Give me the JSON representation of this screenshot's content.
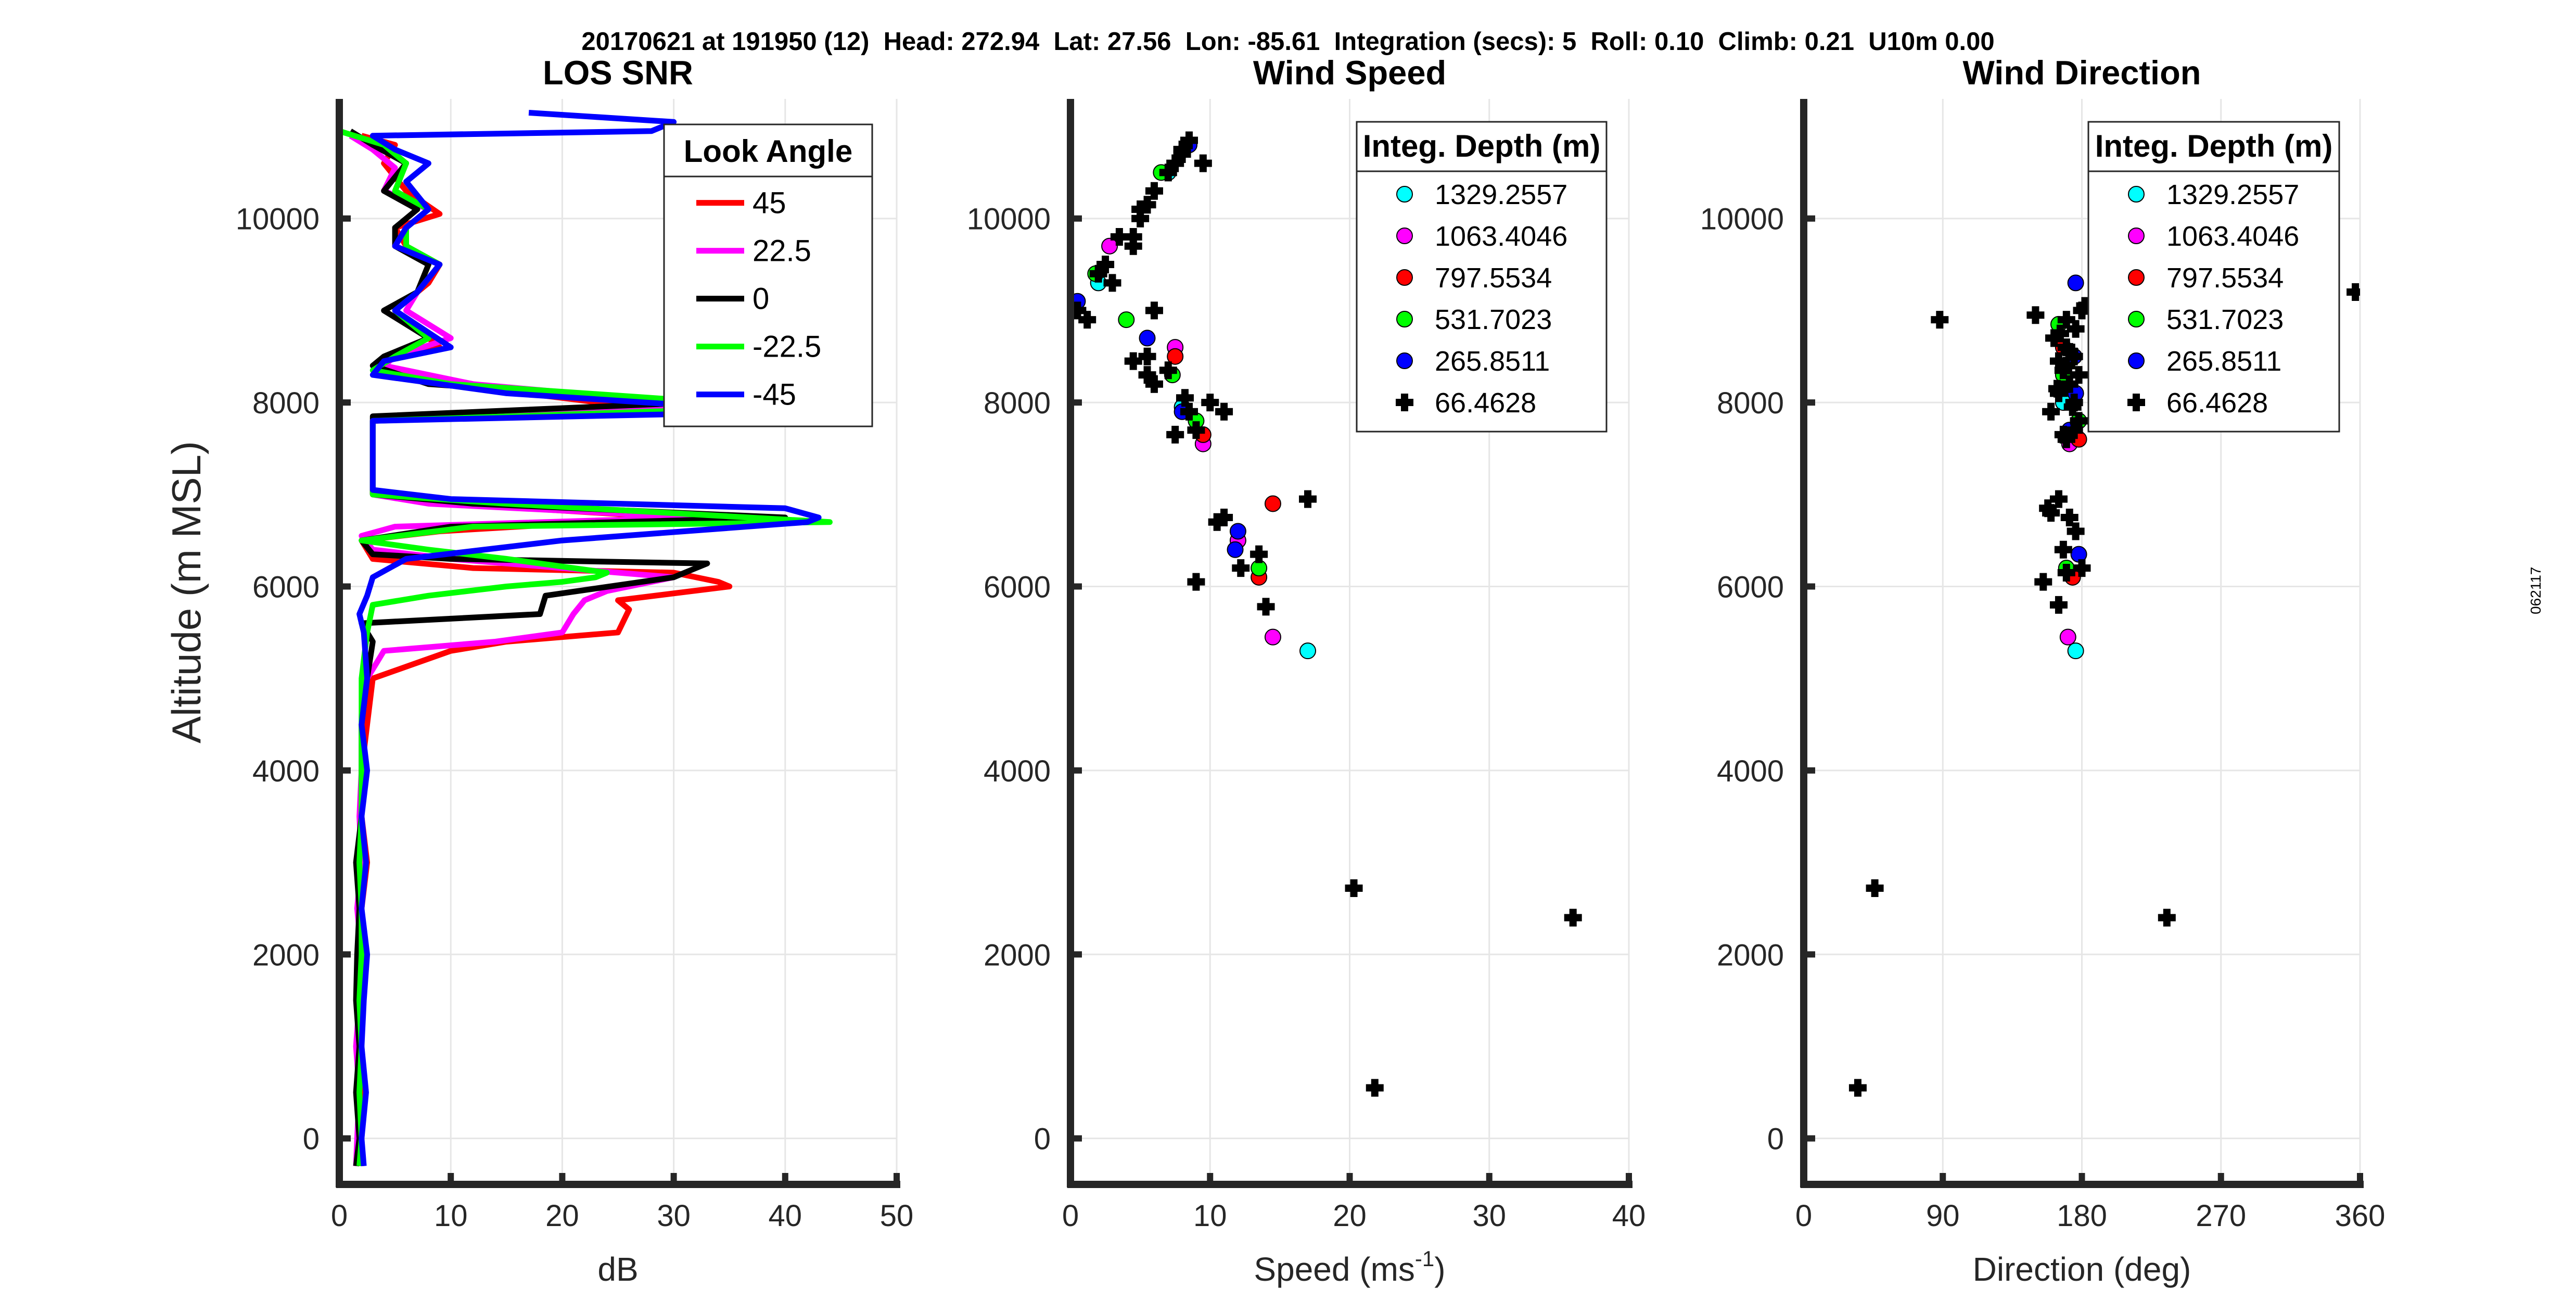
{
  "header": {
    "title": "20170621 at 191950 (12)  Head: 272.94  Lat: 27.56  Lon: -85.61  Integration (secs): 5  Roll: 0.10  Climb: 0.21  U10m 0.00",
    "side_stamp": "062117"
  },
  "chart_data": [
    {
      "type": "line",
      "title": "LOS SNR",
      "xlabel": "dB",
      "ylabel": "Altitude (m MSL)",
      "xlim": [
        0,
        50
      ],
      "ylim": [
        -500,
        11300
      ],
      "xticks": [
        "0",
        "10",
        "20",
        "30",
        "40",
        "50"
      ],
      "yticks": [
        "0",
        "2000",
        "4000",
        "6000",
        "8000",
        "10000"
      ],
      "grid": true,
      "legend": {
        "title": "Look Angle",
        "placement": "top-right",
        "entries": [
          "45",
          "22.5",
          "0",
          "-22.5",
          "-45"
        ]
      },
      "series": [
        {
          "name": "45",
          "color": "#ff0000",
          "x": [
            2,
            2,
            2.2,
            1.8,
            2,
            2.2,
            2,
            2.5,
            2,
            2,
            2.5,
            3,
            10,
            15,
            25,
            26,
            25,
            35,
            34,
            30,
            12,
            3,
            2,
            9,
            30,
            10,
            3,
            3,
            30,
            10,
            3,
            4,
            9,
            5,
            8,
            9,
            6,
            5,
            9,
            6,
            4,
            5,
            2
          ],
          "y": [
            -300,
            0,
            500,
            1000,
            1500,
            2000,
            2500,
            3000,
            3500,
            4000,
            4500,
            5000,
            5300,
            5400,
            5500,
            5750,
            5850,
            6000,
            6050,
            6150,
            6200,
            6300,
            6500,
            6600,
            6750,
            6900,
            7000,
            7800,
            7900,
            8200,
            8400,
            8450,
            8600,
            9000,
            9300,
            9500,
            9700,
            9900,
            10050,
            10300,
            10600,
            10800,
            10900
          ]
        },
        {
          "name": "22.5",
          "color": "#ff00ff",
          "x": [
            1.5,
            1.6,
            1.8,
            1.5,
            1.8,
            2,
            1.6,
            2,
            1.8,
            2,
            2,
            2.5,
            4,
            14,
            20,
            21,
            22,
            24,
            30,
            20,
            10,
            3,
            2,
            5,
            32,
            8,
            3,
            3,
            35,
            12,
            4,
            5,
            10,
            6,
            7,
            9,
            5,
            6,
            8,
            4,
            5,
            3,
            1
          ],
          "y": [
            -300,
            0,
            500,
            1000,
            1500,
            2000,
            2500,
            3000,
            3500,
            4000,
            4500,
            5000,
            5300,
            5400,
            5500,
            5700,
            5850,
            5950,
            6100,
            6200,
            6300,
            6400,
            6550,
            6650,
            6750,
            6900,
            7000,
            7800,
            7950,
            8200,
            8400,
            8500,
            8700,
            9000,
            9200,
            9500,
            9700,
            9900,
            10100,
            10300,
            10550,
            10750,
            10900
          ]
        },
        {
          "name": "0",
          "color": "#000000",
          "x": [
            1.5,
            1.8,
            1.5,
            1.8,
            1.5,
            1.6,
            1.8,
            1.5,
            2,
            2,
            2,
            2.5,
            3,
            2,
            18,
            18.5,
            30,
            32,
            33,
            10,
            3,
            2,
            10,
            40,
            12,
            3,
            3,
            32,
            8,
            3,
            4,
            8,
            4,
            7,
            8,
            5,
            5,
            7,
            4,
            6,
            3,
            1
          ],
          "y": [
            -300,
            0,
            500,
            1000,
            1500,
            2000,
            2500,
            3000,
            3500,
            4000,
            4500,
            5000,
            5400,
            5600,
            5700,
            5900,
            6100,
            6200,
            6250,
            6300,
            6350,
            6500,
            6650,
            6750,
            6900,
            7000,
            7850,
            8000,
            8200,
            8400,
            8500,
            8700,
            9000,
            9200,
            9500,
            9700,
            9900,
            10100,
            10300,
            10600,
            10800,
            10950
          ]
        },
        {
          "name": "-22.5",
          "color": "#00ff00",
          "x": [
            1.8,
            2,
            1.8,
            2,
            1.8,
            2,
            2,
            1.8,
            2,
            2,
            2,
            2,
            2.5,
            3,
            8,
            15,
            20,
            23,
            24,
            15,
            8,
            2,
            12,
            44,
            15,
            3,
            3,
            40,
            10,
            3,
            5,
            8,
            5,
            7,
            9,
            6,
            6,
            8,
            5,
            6,
            4,
            0
          ],
          "y": [
            -300,
            0,
            500,
            1000,
            1500,
            2000,
            2500,
            3000,
            3500,
            4000,
            4500,
            5000,
            5500,
            5800,
            5900,
            6000,
            6050,
            6100,
            6150,
            6300,
            6400,
            6500,
            6650,
            6700,
            6900,
            7000,
            7800,
            7950,
            8200,
            8350,
            8500,
            8700,
            9000,
            9200,
            9500,
            9700,
            9900,
            10100,
            10300,
            10600,
            10800,
            10950
          ]
        },
        {
          "name": "-45",
          "color": "#0000ff",
          "x": [
            2.2,
            2,
            2.4,
            2,
            2.2,
            2.5,
            2,
            2.4,
            2,
            2.5,
            2,
            2.5,
            2.2,
            1.8,
            2.5,
            3,
            6,
            20,
            42,
            43,
            40,
            10,
            3,
            3,
            40,
            15,
            3,
            4,
            10,
            5,
            7,
            9,
            5,
            6,
            8,
            6,
            8,
            5,
            3,
            28,
            30,
            17
          ],
          "y": [
            -300,
            0,
            500,
            1000,
            1500,
            2000,
            2500,
            3000,
            3500,
            4000,
            4500,
            5000,
            5500,
            5700,
            5900,
            6100,
            6300,
            6500,
            6700,
            6750,
            6850,
            6950,
            7050,
            7800,
            7900,
            8100,
            8300,
            8450,
            8600,
            9000,
            9200,
            9500,
            9700,
            9900,
            10100,
            10400,
            10600,
            10750,
            10900,
            10950,
            11050,
            11150
          ]
        }
      ]
    },
    {
      "type": "scatter",
      "title": "Wind Speed",
      "xlabel": "Speed (ms",
      "xlabel_sup": "-1",
      "xlabel_end": ")",
      "xlim": [
        0,
        40
      ],
      "ylim": [
        -500,
        11300
      ],
      "xticks": [
        "0",
        "10",
        "20",
        "30",
        "40"
      ],
      "yticks": [
        "0",
        "2000",
        "4000",
        "6000",
        "8000",
        "10000"
      ],
      "grid": true,
      "legend": {
        "title": "Integ. Depth (m)",
        "placement": "top-right",
        "entries": [
          "1329.2557",
          "1063.4046",
          "797.5534",
          "531.7023",
          "265.8511",
          "66.4628"
        ]
      },
      "series": [
        {
          "name": "1329.2557",
          "color": "#00ffff",
          "marker": "circle",
          "x": [
            17,
            8,
            2,
            7
          ],
          "y": [
            5300,
            7950,
            9300,
            10500
          ]
        },
        {
          "name": "1063.4046",
          "color": "#ff00ff",
          "marker": "circle",
          "x": [
            14.5,
            9.5,
            12,
            2.8,
            7.5
          ],
          "y": [
            5450,
            7550,
            6500,
            9700,
            8600
          ]
        },
        {
          "name": "797.5534",
          "color": "#ff0000",
          "marker": "circle",
          "x": [
            14.5,
            13.5,
            9.5,
            7.5
          ],
          "y": [
            6900,
            6100,
            7650,
            8500
          ]
        },
        {
          "name": "531.7023",
          "color": "#00ff00",
          "marker": "circle",
          "x": [
            13.5,
            9,
            7.3,
            1.8,
            4,
            6.5
          ],
          "y": [
            6200,
            7800,
            8300,
            9400,
            8900,
            10500
          ]
        },
        {
          "name": "265.8511",
          "color": "#0000ff",
          "marker": "circle",
          "x": [
            11.8,
            12,
            8,
            5.5,
            0.5,
            8.5
          ],
          "y": [
            6400,
            6600,
            7900,
            8700,
            9100,
            10800
          ]
        },
        {
          "name": "66.4628",
          "color": "#000000",
          "marker": "plus",
          "x": [
            21.8,
            20.3,
            36,
            14,
            12.2,
            13.5,
            9,
            10.5,
            11,
            17,
            9,
            7.5,
            8.5,
            11,
            10,
            8.2,
            6,
            7,
            5.5,
            5.5,
            4.5,
            6,
            3,
            2.5,
            0.5,
            1.2,
            2,
            4.5,
            4.5,
            5,
            5.5,
            6,
            7,
            7.5,
            8,
            9.5,
            8.5,
            8,
            3.5,
            5
          ],
          "y": [
            550,
            2720,
            2400,
            5780,
            6200,
            6350,
            6050,
            6700,
            6750,
            6950,
            7700,
            7650,
            7900,
            7900,
            8000,
            8050,
            8200,
            8350,
            8500,
            8300,
            8450,
            9000,
            9300,
            9500,
            9000,
            8900,
            9400,
            9800,
            9700,
            10000,
            10150,
            10300,
            10500,
            10600,
            10750,
            10600,
            10850,
            10700,
            9800,
            10100
          ]
        }
      ]
    },
    {
      "type": "scatter",
      "title": "Wind Direction",
      "xlabel": "Direction (deg)",
      "xlim": [
        0,
        360
      ],
      "ylim": [
        -500,
        11300
      ],
      "xticks": [
        "0",
        "90",
        "180",
        "270",
        "360"
      ],
      "yticks": [
        "0",
        "2000",
        "4000",
        "6000",
        "8000",
        "10000"
      ],
      "grid": true,
      "legend": {
        "title": "Integ. Depth (m)",
        "placement": "top-right",
        "entries": [
          "1329.2557",
          "1063.4046",
          "797.5534",
          "531.7023",
          "265.8511",
          "66.4628"
        ]
      },
      "series": [
        {
          "name": "1329.2557",
          "color": "#00ffff",
          "marker": "circle",
          "x": [
            176,
            168
          ],
          "y": [
            5300,
            8000
          ]
        },
        {
          "name": "1063.4046",
          "color": "#ff00ff",
          "marker": "circle",
          "x": [
            171,
            172
          ],
          "y": [
            5450,
            7550
          ]
        },
        {
          "name": "797.5534",
          "color": "#ff0000",
          "marker": "circle",
          "x": [
            174,
            178,
            168
          ],
          "y": [
            6100,
            7600,
            8600
          ]
        },
        {
          "name": "531.7023",
          "color": "#00ff00",
          "marker": "circle",
          "x": [
            170,
            178,
            165,
            168
          ],
          "y": [
            6200,
            7800,
            8850,
            8300
          ]
        },
        {
          "name": "265.8511",
          "color": "#0000ff",
          "marker": "circle",
          "x": [
            178,
            176,
            175,
            176,
            172
          ],
          "y": [
            6350,
            8100,
            8500,
            9300,
            7700
          ]
        },
        {
          "name": "66.4628",
          "color": "#000000",
          "marker": "plus",
          "x": [
            35,
            46,
            235,
            357,
            88,
            155,
            180,
            165,
            170,
            168,
            176,
            172,
            158,
            160,
            165,
            170,
            175,
            178,
            160,
            175,
            165,
            172,
            178,
            168,
            165,
            175,
            170,
            162,
            166,
            176,
            170,
            180,
            182,
            150,
            168,
            174,
            164,
            170,
            172
          ],
          "y": [
            550,
            2720,
            2400,
            9200,
            8900,
            6050,
            6200,
            5800,
            6150,
            6400,
            6600,
            6750,
            6850,
            6800,
            6950,
            7600,
            7700,
            7800,
            7900,
            8000,
            8100,
            8200,
            8300,
            8350,
            8450,
            8500,
            8600,
            8700,
            8750,
            8800,
            8900,
            9000,
            9050,
            8950,
            7650,
            7950,
            8150,
            8400,
            8550
          ]
        }
      ]
    }
  ]
}
